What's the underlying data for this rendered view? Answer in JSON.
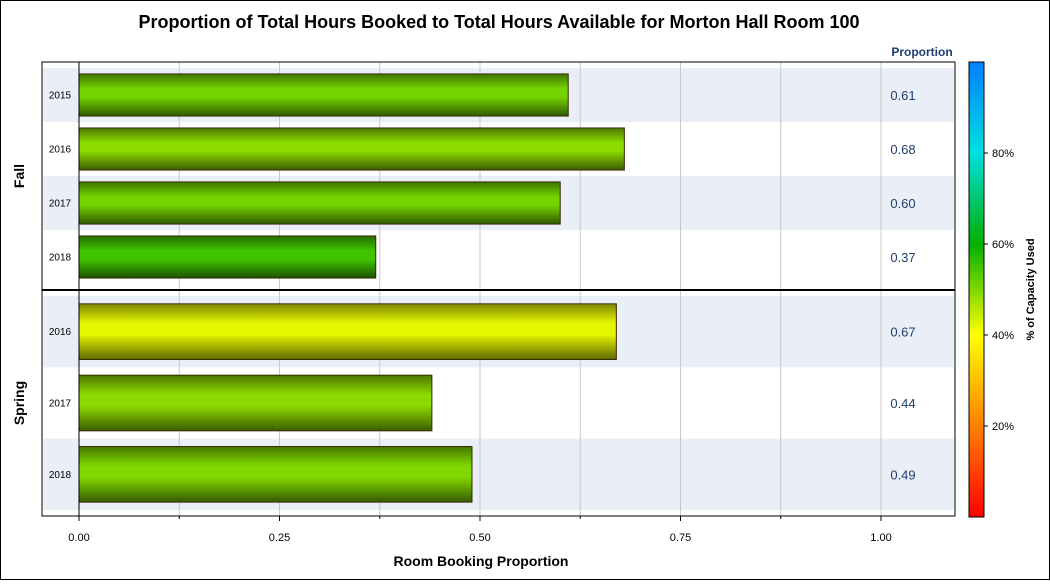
{
  "chart_data": {
    "type": "bar",
    "orientation": "horizontal",
    "title": "Proportion of Total Hours Booked to Total Hours Available for Morton Hall Room 100",
    "xlabel": "Room Booking Proportion",
    "xlim": [
      0,
      1.0
    ],
    "xticks": [
      0.0,
      0.25,
      0.5,
      0.75,
      1.0
    ],
    "xtick_labels": [
      "0.00",
      "0.25",
      "0.50",
      "0.75",
      "1.00"
    ],
    "value_column_header": "Proportion",
    "grid": true,
    "colorbar": {
      "label": "% of Capacity Used",
      "ticks": [
        "20%",
        "40%",
        "60%",
        "80%"
      ],
      "tick_values": [
        20,
        40,
        60,
        80
      ],
      "range": [
        0,
        100
      ],
      "colors": [
        "#ff0000",
        "#ff8000",
        "#ffff00",
        "#00b000",
        "#00e0e0",
        "#0080ff"
      ]
    },
    "groups": [
      {
        "name": "Fall",
        "rows": [
          {
            "label": "2015",
            "value": 0.61,
            "value_label": "0.61",
            "capacity_pct": 51
          },
          {
            "label": "2016",
            "value": 0.68,
            "value_label": "0.68",
            "capacity_pct": 49
          },
          {
            "label": "2017",
            "value": 0.6,
            "value_label": "0.60",
            "capacity_pct": 51
          },
          {
            "label": "2018",
            "value": 0.37,
            "value_label": "0.37",
            "capacity_pct": 55
          }
        ]
      },
      {
        "name": "Spring",
        "rows": [
          {
            "label": "2016",
            "value": 0.67,
            "value_label": "0.67",
            "capacity_pct": 42
          },
          {
            "label": "2017",
            "value": 0.44,
            "value_label": "0.44",
            "capacity_pct": 49
          },
          {
            "label": "2018",
            "value": 0.49,
            "value_label": "0.49",
            "capacity_pct": 50
          }
        ]
      }
    ]
  }
}
